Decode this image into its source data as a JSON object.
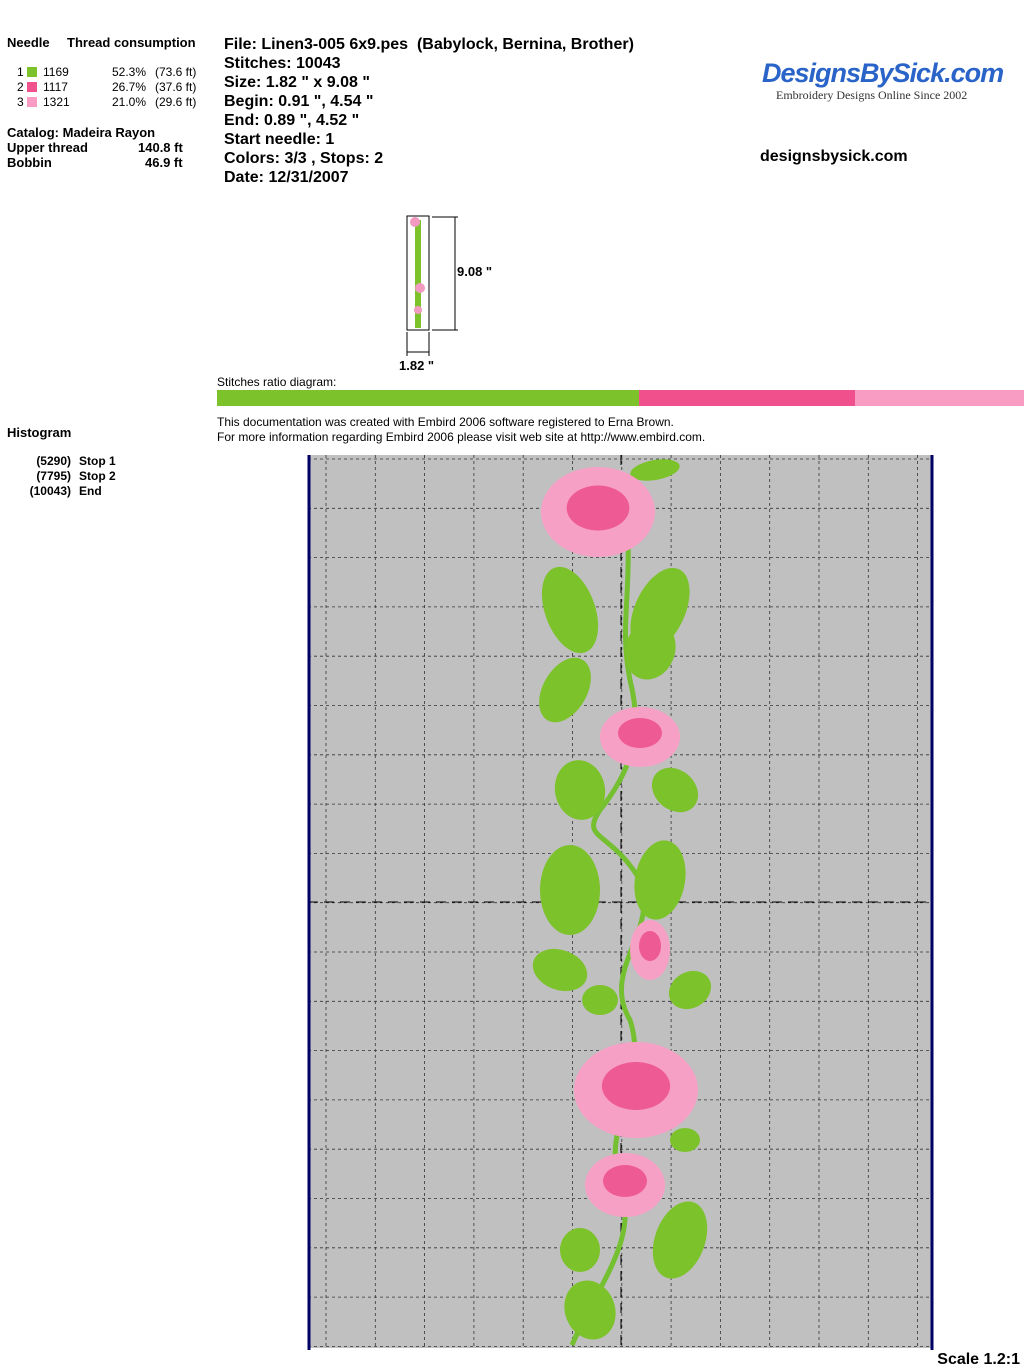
{
  "thread_table": {
    "header_needle": "Needle",
    "header_consumption": "Thread consumption",
    "threads": [
      {
        "needle": "1",
        "color": "#7cc22a",
        "code": "1169",
        "percent": {
          "value": 52.3,
          "label": "52.3%"
        },
        "length": "(73.6 ft)"
      },
      {
        "needle": "2",
        "color": "#f0508c",
        "code": "1117",
        "percent": {
          "value": 26.7,
          "label": "26.7%"
        },
        "length": "(37.6 ft)"
      },
      {
        "needle": "3",
        "color": "#f89cc4",
        "code": "1321",
        "percent": {
          "value": 21.0,
          "label": "21.0%"
        },
        "length": "(29.6 ft)"
      }
    ]
  },
  "catalog": "Catalog: Madeira Rayon",
  "totals": [
    {
      "label": "Upper thread",
      "value": "140.8 ft"
    },
    {
      "label": "Bobbin",
      "value": "46.9 ft"
    }
  ],
  "design_info": [
    "File: Linen3-005 6x9.pes  (Babylock, Bernina, Brother)",
    "Stitches: 10043",
    "Size: 1.82 \" x 9.08 \"",
    "Begin: 0.91 \", 4.54 \"",
    "End: 0.89 \", 4.52 \"",
    "Start needle: 1",
    "Colors: 3/3 , Stops: 2",
    "Date: 12/31/2007"
  ],
  "logo": {
    "title": "DesignsBySick.com",
    "tagline": "Embroidery Designs Online Since 2002"
  },
  "website": "designsbysick.com",
  "preview": {
    "height": "9.08 \"",
    "width": "1.82 \""
  },
  "ratio_diagram": {
    "label": "Stitches ratio diagram:"
  },
  "credits": [
    "This documentation was created with Embird 2006 software registered to Erna Brown.",
    "For more information regarding Embird 2006 please visit web site at http://www.embird.com."
  ],
  "histogram": {
    "title": "Histogram",
    "stops": [
      {
        "count": "(5290)",
        "label": "Stop 1"
      },
      {
        "count": "(7795)",
        "label": "Stop 2"
      },
      {
        "count": "(10043)",
        "label": "End"
      }
    ]
  },
  "scale": "Scale 1.2:1"
}
